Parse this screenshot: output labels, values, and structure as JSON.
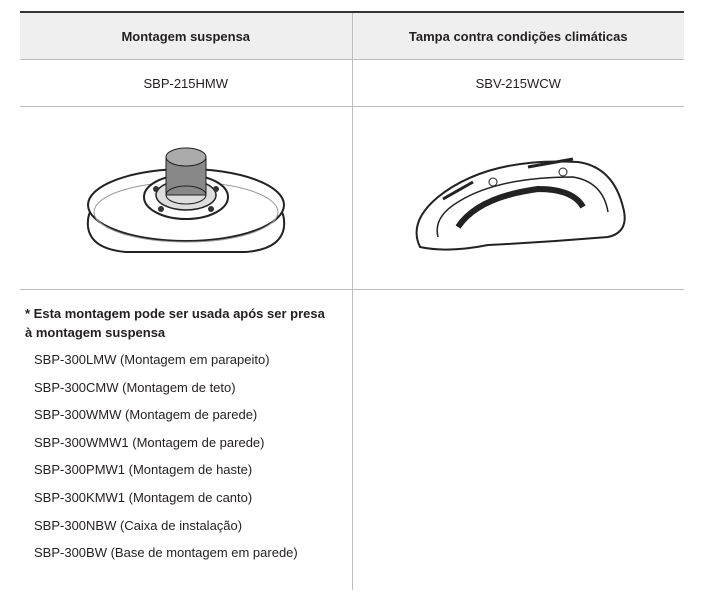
{
  "table": {
    "header": [
      "Montagem suspensa",
      "Tampa contra condições climáticas"
    ],
    "models": [
      "SBP-215HMW",
      "SBV-215WCW"
    ],
    "note": "* Esta montagem pode ser usada após ser presa à montagem suspensa",
    "items": [
      "SBP-300LMW (Montagem em parapeito)",
      "SBP-300CMW (Montagem de teto)",
      "SBP-300WMW (Montagem de parede)",
      "SBP-300WMW1 (Montagem de parede)",
      "SBP-300PMW1 (Montagem de haste)",
      "SBP-300KMW1 (Montagem de canto)",
      "SBP-300NBW (Caixa de instalação)",
      "SBP-300BW (Base de montagem em parede)"
    ]
  }
}
